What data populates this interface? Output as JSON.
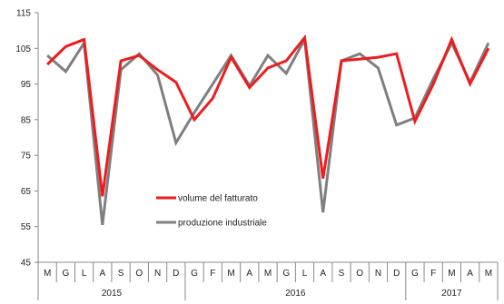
{
  "chart_data": {
    "type": "line",
    "title": "",
    "xlabel": "",
    "ylabel": "",
    "ylim": [
      45,
      115
    ],
    "yticks": [
      45,
      55,
      65,
      75,
      85,
      95,
      105,
      115
    ],
    "categories": [
      "M",
      "G",
      "L",
      "A",
      "S",
      "O",
      "N",
      "D",
      "G",
      "F",
      "M",
      "A",
      "M",
      "G",
      "L",
      "A",
      "S",
      "O",
      "N",
      "D",
      "G",
      "F",
      "M",
      "A",
      "M"
    ],
    "year_groups": [
      {
        "label": "2015",
        "span": 8
      },
      {
        "label": "2016",
        "span": 12
      },
      {
        "label": "2017",
        "span": 5
      }
    ],
    "grid": false,
    "legend_position": "bottom-left inside plot",
    "series": [
      {
        "name": "volume del fatturato",
        "color": "#ee1c1c",
        "values": [
          100.5,
          105.5,
          107.5,
          63.5,
          101.5,
          103.0,
          99.0,
          95.5,
          85.0,
          91.0,
          102.5,
          94.0,
          99.5,
          101.5,
          108.0,
          68.5,
          101.5,
          102.0,
          102.5,
          103.5,
          84.5,
          95.0,
          107.5,
          95.0,
          105.0
        ]
      },
      {
        "name": "produzione industriale",
        "color": "#7f7f7f",
        "values": [
          103.0,
          98.5,
          106.5,
          55.5,
          99.0,
          103.5,
          97.5,
          78.5,
          87.0,
          95.0,
          103.0,
          94.5,
          103.0,
          98.0,
          107.5,
          59.0,
          101.5,
          103.5,
          99.5,
          83.5,
          85.5,
          96.5,
          106.5,
          95.5,
          106.5
        ]
      }
    ]
  }
}
